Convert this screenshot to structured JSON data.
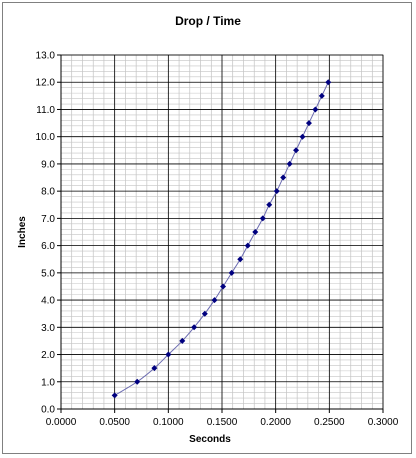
{
  "chart_data": {
    "type": "scatter",
    "title": "Drop / Time",
    "xlabel": "Seconds",
    "ylabel": "Inches",
    "xlim": [
      0,
      0.3
    ],
    "ylim": [
      0,
      13
    ],
    "x_ticks": [
      "0.0000",
      "0.0500",
      "0.1000",
      "0.1500",
      "0.2000",
      "0.2500",
      "0.3000"
    ],
    "y_ticks": [
      "0.0",
      "1.0",
      "2.0",
      "3.0",
      "4.0",
      "5.0",
      "6.0",
      "7.0",
      "8.0",
      "9.0",
      "10.0",
      "11.0",
      "12.0",
      "13.0"
    ],
    "grid": true,
    "marker_color": "#00007f",
    "line_color": "#6b6bb0",
    "points": [
      {
        "x": 0.05,
        "y": 0.5
      },
      {
        "x": 0.071,
        "y": 1.0
      },
      {
        "x": 0.087,
        "y": 1.5
      },
      {
        "x": 0.1,
        "y": 2.0
      },
      {
        "x": 0.113,
        "y": 2.5
      },
      {
        "x": 0.124,
        "y": 3.0
      },
      {
        "x": 0.134,
        "y": 3.5
      },
      {
        "x": 0.143,
        "y": 4.0
      },
      {
        "x": 0.151,
        "y": 4.5
      },
      {
        "x": 0.159,
        "y": 5.0
      },
      {
        "x": 0.167,
        "y": 5.5
      },
      {
        "x": 0.174,
        "y": 6.0
      },
      {
        "x": 0.181,
        "y": 6.5
      },
      {
        "x": 0.188,
        "y": 7.0
      },
      {
        "x": 0.194,
        "y": 7.5
      },
      {
        "x": 0.201,
        "y": 8.0
      },
      {
        "x": 0.207,
        "y": 8.5
      },
      {
        "x": 0.213,
        "y": 9.0
      },
      {
        "x": 0.219,
        "y": 9.5
      },
      {
        "x": 0.225,
        "y": 10.0
      },
      {
        "x": 0.231,
        "y": 10.5
      },
      {
        "x": 0.237,
        "y": 11.0
      },
      {
        "x": 0.243,
        "y": 11.5
      },
      {
        "x": 0.249,
        "y": 12.0
      }
    ]
  }
}
